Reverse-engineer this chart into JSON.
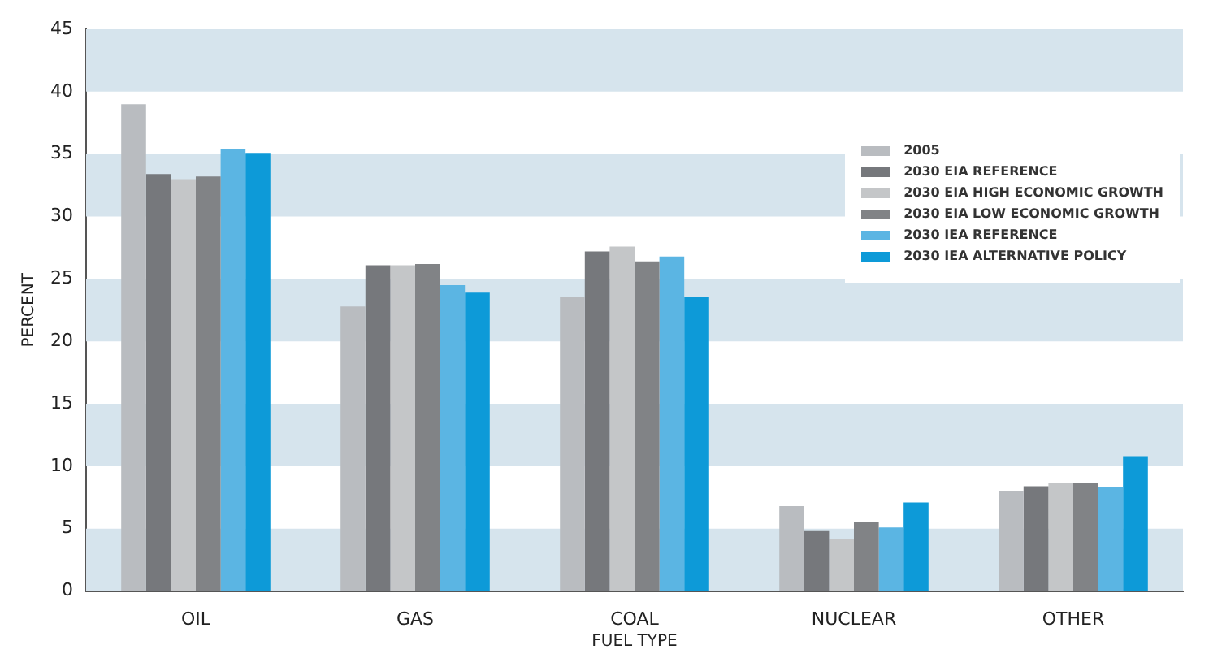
{
  "chart_data": {
    "type": "bar",
    "xlabel": "FUEL TYPE",
    "ylabel": "PERCENT",
    "categories": [
      "OIL",
      "GAS",
      "COAL",
      "NUCLEAR",
      "OTHER"
    ],
    "series": [
      {
        "name": "2005",
        "color": "#b9bcc0",
        "values": [
          39,
          22.8,
          23.6,
          6.8,
          8.0
        ]
      },
      {
        "name": "2030 EIA REFERENCE",
        "color": "#76787c",
        "values": [
          33.4,
          26.1,
          27.2,
          4.8,
          8.4
        ]
      },
      {
        "name": "2030 EIA HIGH ECONOMIC GROWTH",
        "color": "#c4c6c8",
        "values": [
          33.0,
          26.1,
          27.6,
          4.2,
          8.7
        ]
      },
      {
        "name": "2030 EIA LOW ECONOMIC GROWTH",
        "color": "#818386",
        "values": [
          33.2,
          26.2,
          26.4,
          5.5,
          8.7
        ]
      },
      {
        "name": "2030 IEA REFERENCE",
        "color": "#5bb5e3",
        "values": [
          35.4,
          24.5,
          26.8,
          5.1,
          8.3
        ]
      },
      {
        "name": "2030 IEA ALTERNATIVE POLICY",
        "color": "#0d9ad8",
        "values": [
          35.1,
          23.9,
          23.6,
          7.1,
          10.8
        ]
      }
    ],
    "ylim": [
      0,
      45
    ],
    "yticks": [
      0,
      5,
      10,
      15,
      20,
      25,
      30,
      35,
      40,
      45
    ],
    "grid": false,
    "legend": "top right",
    "bands": [
      {
        "axis": "y",
        "from": 0,
        "to": 5,
        "color": "#d6e4ed"
      },
      {
        "axis": "y",
        "from": 10,
        "to": 15,
        "color": "#d6e4ed"
      },
      {
        "axis": "y",
        "from": 20,
        "to": 25,
        "color": "#d6e4ed"
      },
      {
        "axis": "y",
        "from": 30,
        "to": 35,
        "color": "#d6e4ed"
      },
      {
        "axis": "y",
        "from": 40,
        "to": 45,
        "color": "#d6e4ed"
      }
    ]
  }
}
